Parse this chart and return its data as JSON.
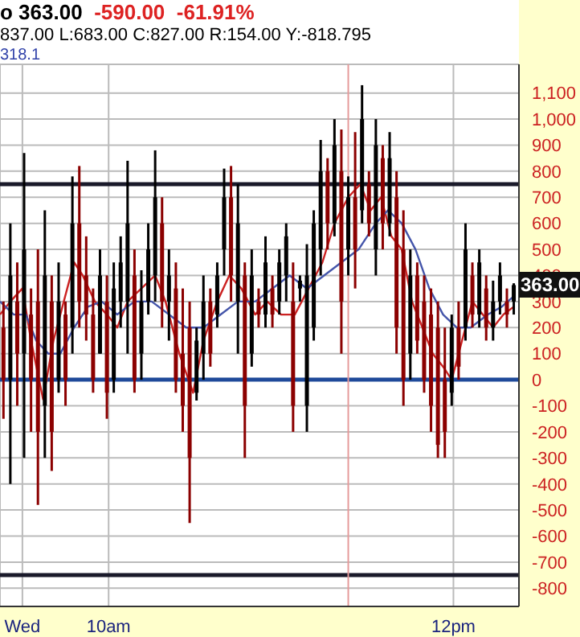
{
  "chart_data": {
    "type": "candlestick",
    "annotations": [
      "o 363.00",
      "-590.00",
      "-61.91%",
      "837.00 L:683.00 C:827.00 R:154.00 Y:-818.795",
      "318.1",
      {
        "text": "363.00",
        "y": 363
      }
    ],
    "x": [
      9.39,
      9.43,
      9.47,
      9.51,
      9.55,
      9.59,
      9.63,
      9.67,
      9.71,
      9.75,
      9.79,
      9.83,
      9.87,
      9.91,
      9.95,
      9.99,
      10.03,
      10.07,
      10.11,
      10.15,
      10.19,
      10.23,
      10.27,
      10.31,
      10.35,
      10.39,
      10.43,
      10.47,
      10.51,
      10.55,
      10.59,
      10.63,
      10.67,
      10.71,
      10.75,
      10.79,
      10.83,
      10.87,
      10.91,
      10.95,
      10.99,
      11.03,
      11.07,
      11.11,
      11.15,
      11.19,
      11.23,
      11.27,
      11.31,
      11.35,
      11.39,
      11.43,
      11.47,
      11.51,
      11.55,
      11.59,
      11.63,
      11.67,
      11.71,
      11.75,
      11.79,
      11.83,
      11.87,
      11.91,
      11.95,
      11.99,
      12.03,
      12.07,
      12.11,
      12.15,
      12.19,
      12.23,
      12.27,
      12.31,
      12.35
    ],
    "ohlc": [
      [
        200,
        300,
        -150,
        0
      ],
      [
        0,
        600,
        -400,
        400
      ],
      [
        300,
        450,
        -100,
        100
      ],
      [
        100,
        870,
        -300,
        500
      ],
      [
        250,
        350,
        -200,
        0
      ],
      [
        300,
        500,
        -480,
        -200
      ],
      [
        -100,
        650,
        -300,
        400
      ],
      [
        300,
        400,
        -350,
        -200
      ],
      [
        0,
        450,
        -50,
        300
      ],
      [
        250,
        300,
        -100,
        0
      ],
      [
        200,
        780,
        100,
        600
      ],
      [
        600,
        820,
        200,
        300
      ],
      [
        400,
        550,
        150,
        250
      ],
      [
        250,
        350,
        -50,
        0
      ],
      [
        100,
        500,
        100,
        400
      ],
      [
        300,
        400,
        -150,
        -50
      ],
      [
        0,
        450,
        -50,
        350
      ],
      [
        300,
        550,
        200,
        450
      ],
      [
        300,
        840,
        100,
        600
      ],
      [
        400,
        500,
        -50,
        0
      ],
      [
        100,
        420,
        0,
        300
      ],
      [
        300,
        600,
        250,
        500
      ],
      [
        400,
        880,
        300,
        700
      ],
      [
        600,
        700,
        200,
        300
      ],
      [
        300,
        500,
        150,
        400
      ],
      [
        350,
        450,
        -50,
        0
      ],
      [
        100,
        350,
        -200,
        -100
      ],
      [
        200,
        300,
        -550,
        -300
      ],
      [
        -50,
        200,
        -80,
        150
      ],
      [
        100,
        400,
        0,
        300
      ],
      [
        300,
        350,
        50,
        100
      ],
      [
        250,
        450,
        200,
        400
      ],
      [
        500,
        810,
        400,
        700
      ],
      [
        700,
        820,
        300,
        400
      ],
      [
        300,
        750,
        100,
        600
      ],
      [
        400,
        450,
        -300,
        -100
      ],
      [
        100,
        500,
        50,
        400
      ],
      [
        300,
        350,
        200,
        250
      ],
      [
        250,
        550,
        200,
        450
      ],
      [
        350,
        400,
        200,
        250
      ],
      [
        300,
        500,
        250,
        450
      ],
      [
        400,
        600,
        300,
        550
      ],
      [
        300,
        450,
        -200,
        -100
      ],
      [
        350,
        400,
        300,
        380
      ],
      [
        -100,
        520,
        -200,
        400
      ],
      [
        200,
        650,
        150,
        600
      ],
      [
        500,
        920,
        400,
        800
      ],
      [
        800,
        850,
        500,
        600
      ],
      [
        600,
        1000,
        550,
        900
      ],
      [
        800,
        960,
        100,
        300
      ],
      [
        500,
        780,
        400,
        700
      ],
      [
        700,
        950,
        350,
        500
      ],
      [
        650,
        1130,
        600,
        1000
      ],
      [
        750,
        800,
        550,
        600
      ],
      [
        500,
        1000,
        400,
        900
      ],
      [
        850,
        900,
        500,
        600
      ],
      [
        600,
        950,
        550,
        850
      ],
      [
        700,
        800,
        100,
        200
      ],
      [
        500,
        650,
        -100,
        0
      ],
      [
        100,
        500,
        0,
        400
      ],
      [
        400,
        450,
        100,
        150
      ],
      [
        300,
        400,
        -50,
        0
      ],
      [
        250,
        350,
        -200,
        -100
      ],
      [
        200,
        300,
        -300,
        -250
      ],
      [
        0,
        200,
        -300,
        -200
      ],
      [
        -50,
        250,
        -100,
        200
      ],
      [
        200,
        300,
        0,
        50
      ],
      [
        200,
        600,
        150,
        500
      ],
      [
        400,
        450,
        200,
        250
      ],
      [
        250,
        500,
        200,
        450
      ],
      [
        350,
        400,
        150,
        200
      ],
      [
        200,
        380,
        150,
        300
      ],
      [
        300,
        450,
        250,
        400
      ],
      [
        300,
        350,
        200,
        250
      ],
      [
        300,
        370,
        250,
        363
      ]
    ],
    "colors": [
      "#8b0000",
      "#000000",
      "#8b0000",
      "#000000",
      "#8b0000",
      "#8b0000",
      "#000000",
      "#8b0000",
      "#000000",
      "#8b0000",
      "#000000",
      "#8b0000",
      "#8b0000",
      "#8b0000",
      "#000000",
      "#8b0000",
      "#000000",
      "#000000",
      "#000000",
      "#8b0000",
      "#000000",
      "#000000",
      "#000000",
      "#8b0000",
      "#000000",
      "#8b0000",
      "#8b0000",
      "#8b0000",
      "#000000",
      "#000000",
      "#8b0000",
      "#000000",
      "#000000",
      "#8b0000",
      "#000000",
      "#8b0000",
      "#000000",
      "#8b0000",
      "#000000",
      "#8b0000",
      "#000000",
      "#000000",
      "#8b0000",
      "#000000",
      "#000000",
      "#000000",
      "#000000",
      "#8b0000",
      "#000000",
      "#8b0000",
      "#000000",
      "#8b0000",
      "#000000",
      "#8b0000",
      "#000000",
      "#8b0000",
      "#000000",
      "#8b0000",
      "#8b0000",
      "#000000",
      "#8b0000",
      "#8b0000",
      "#8b0000",
      "#8b0000",
      "#8b0000",
      "#000000",
      "#8b0000",
      "#000000",
      "#8b0000",
      "#000000",
      "#8b0000",
      "#000000",
      "#000000",
      "#8b0000",
      "#000000"
    ],
    "series": [
      {
        "type": "line",
        "color": "#cc2222",
        "x": [
          9.37,
          9.43,
          9.5,
          9.55,
          9.62,
          9.68,
          9.74,
          9.8,
          9.85,
          9.92,
          9.99,
          10.05,
          10.11,
          10.19,
          10.27,
          10.33,
          10.41,
          10.49,
          10.55,
          10.63,
          10.7,
          10.77,
          10.85,
          10.92,
          11.0,
          11.08,
          11.16,
          11.24,
          11.31,
          11.39,
          11.46,
          11.52,
          11.58,
          11.64,
          11.7,
          11.76,
          11.82,
          11.88,
          11.94,
          11.99,
          12.05,
          12.11,
          12.17,
          12.23,
          12.29,
          12.35
        ],
        "values": [
          250,
          300,
          350,
          150,
          -75,
          150,
          300,
          450,
          400,
          300,
          250,
          200,
          300,
          350,
          400,
          300,
          100,
          -50,
          150,
          300,
          400,
          350,
          250,
          300,
          250,
          250,
          350,
          450,
          600,
          700,
          750,
          650,
          700,
          550,
          500,
          300,
          200,
          100,
          50,
          0,
          150,
          300,
          250,
          200,
          250,
          280
        ]
      },
      {
        "type": "line",
        "color": "#4455aa",
        "x": [
          9.37,
          9.45,
          9.52,
          9.58,
          9.65,
          9.72,
          9.8,
          9.88,
          9.96,
          10.05,
          10.15,
          10.25,
          10.35,
          10.45,
          10.55,
          10.65,
          10.75,
          10.85,
          10.95,
          11.05,
          11.15,
          11.25,
          11.35,
          11.45,
          11.55,
          11.62,
          11.7,
          11.78,
          11.86,
          11.94,
          12.02,
          12.1,
          12.2,
          12.28,
          12.35
        ],
        "values": [
          300,
          250,
          250,
          150,
          100,
          100,
          200,
          280,
          300,
          250,
          300,
          300,
          250,
          200,
          200,
          250,
          300,
          300,
          350,
          400,
          350,
          400,
          450,
          500,
          600,
          650,
          600,
          500,
          350,
          250,
          200,
          200,
          250,
          280,
          320
        ]
      }
    ],
    "ref_lines": [
      {
        "axis": "y",
        "value": 750,
        "color": "#1a1a2a"
      },
      {
        "axis": "y",
        "value": 0,
        "color": "#1f4a9a"
      },
      {
        "axis": "y",
        "value": -750,
        "color": "#1a1a2a"
      },
      {
        "axis": "x",
        "value": 11.39,
        "color": "#e59a9a"
      }
    ],
    "xlim": [
      9.37,
      12.38
    ],
    "xticks": [
      {
        "value": 9.5,
        "label": "Wed"
      },
      {
        "value": 10,
        "label": "10am"
      },
      {
        "value": 12,
        "label": "12pm"
      }
    ],
    "ylim": [
      -870,
      1210
    ],
    "yticks": [
      -800,
      -700,
      -600,
      -500,
      -400,
      -300,
      -200,
      -100,
      0,
      100,
      200,
      300,
      400,
      500,
      600,
      700,
      800,
      900,
      {
        "value": 1000,
        "label": "1,000"
      },
      {
        "value": 1100,
        "label": "1,100"
      }
    ],
    "grid": true
  }
}
